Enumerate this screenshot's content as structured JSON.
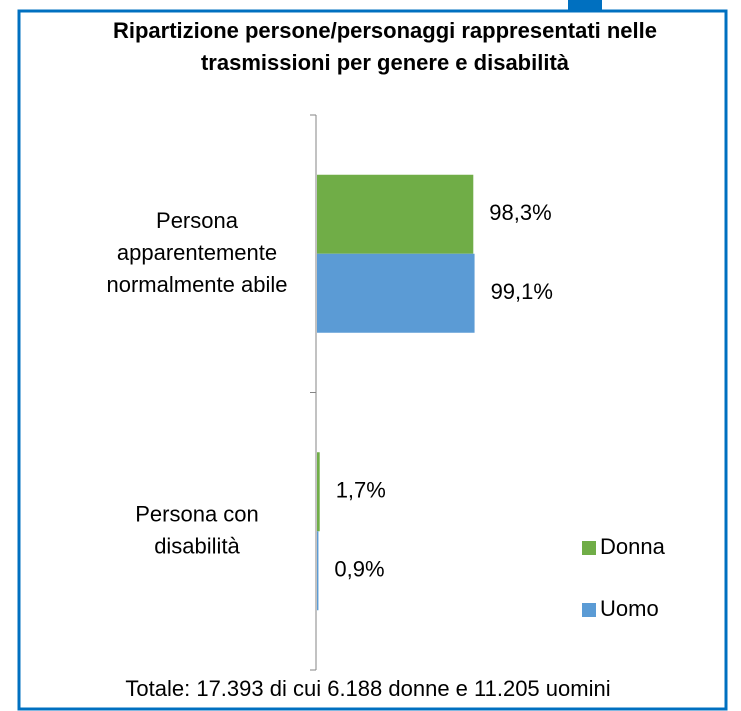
{
  "chart_data": {
    "type": "hbar",
    "title": "Ripartizione persone/personaggi rappresentati nelle\ntrasmissioni per genere e disabilità",
    "categories": [
      "Persona\napparentemente\nnormalmente abile",
      "Persona con\ndisabilità"
    ],
    "series": [
      {
        "name": "Donna",
        "color": "#70ad47",
        "values": [
          98.3,
          1.7
        ],
        "value_labels": [
          "98,3%",
          "1,7%"
        ]
      },
      {
        "name": "Uomo",
        "color": "#5b9bd5",
        "values": [
          99.1,
          0.9
        ],
        "value_labels": [
          "99,1%",
          "0,9%"
        ]
      }
    ],
    "value_label_colors": [
      "#1f4e79",
      "#ff0000"
    ],
    "xlim": [
      0,
      100
    ],
    "legend": "right",
    "note": "Totale: 17.393 di cui 6.188 donne e 11.205 uomini"
  }
}
